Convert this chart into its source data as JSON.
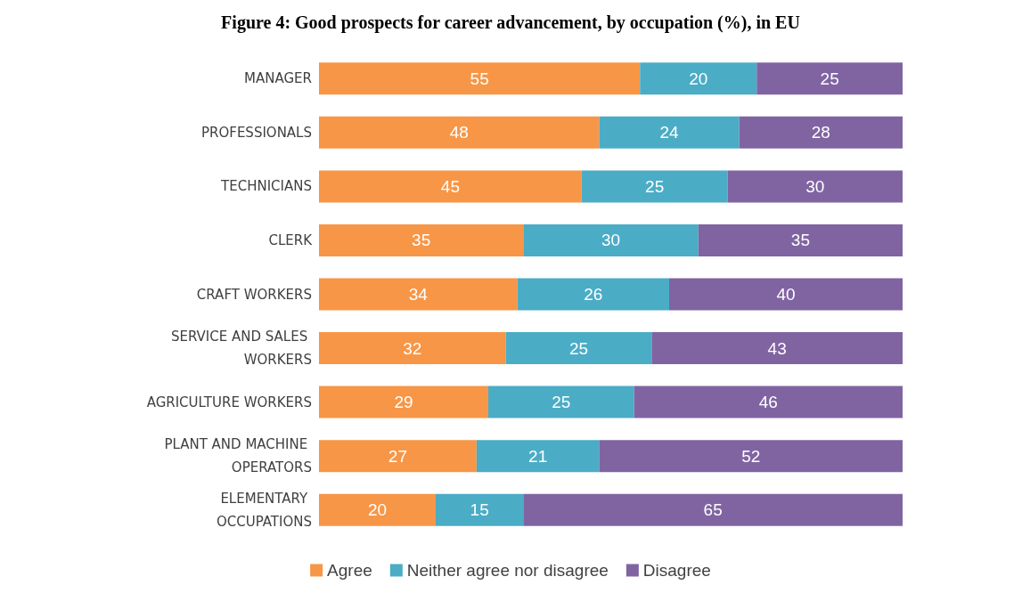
{
  "chart_data": {
    "type": "bar",
    "title": "Figure 4: Good prospects for career advancement, by occupation (%), in EU",
    "orientation": "horizontal",
    "stacked": true,
    "data_labels": true,
    "grid": false,
    "legend": "bottom",
    "categories": [
      "MANAGER",
      "PROFESSIONALS",
      "TECHNICIANS",
      "CLERK",
      "CRAFT WORKERS",
      "SERVICE AND SALES WORKERS",
      "AGRICULTURE WORKERS",
      "PLANT AND MACHINE OPERATORS",
      "ELEMENTARY OCCUPATIONS"
    ],
    "series": [
      {
        "name": "Agree",
        "color": "#f79646",
        "values": [
          55,
          48,
          45,
          35,
          34,
          32,
          29,
          27,
          20
        ]
      },
      {
        "name": "Neither agree nor disagree",
        "color": "#4bacc6",
        "values": [
          20,
          24,
          25,
          30,
          26,
          25,
          25,
          21,
          15
        ]
      },
      {
        "name": "Disagree",
        "color": "#8064a2",
        "values": [
          25,
          28,
          30,
          35,
          40,
          43,
          46,
          52,
          65
        ]
      }
    ]
  }
}
